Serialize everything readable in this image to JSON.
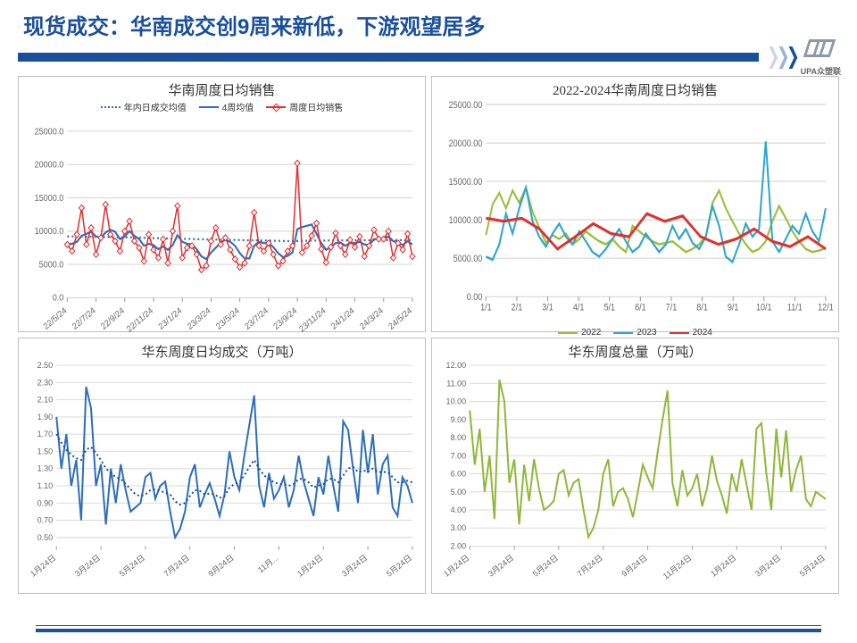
{
  "page_title": "现货成交：华南成交创9周来新低，下游观望居多",
  "logo_text": "UPA众塑联",
  "colors": {
    "brand": "#1a4f9c",
    "grid": "#d9d9d9",
    "axis": "#808080",
    "red": "#e03030",
    "blue": "#2e6fb8",
    "blue_dotted": "#3a6fb0",
    "green": "#8fb83a",
    "olive": "#9bbf3f",
    "teal": "#2ea7c9",
    "darknavy": "#1a4f9c"
  },
  "chart1": {
    "title": "华南周度日均销售",
    "type": "line",
    "legend": [
      {
        "label": "年内日成交均值",
        "color": "#3a6fb0",
        "style": "dotted"
      },
      {
        "label": "4周均值",
        "color": "#2e6fb8",
        "style": "solid"
      },
      {
        "label": "周度日均销售",
        "color": "#e03030",
        "style": "solid",
        "marker": "diamond"
      }
    ],
    "ylim": [
      0,
      25000
    ],
    "ytick_step": 5000,
    "x_labels": [
      "22/5/24",
      "22/7/24",
      "22/9/24",
      "22/11/24",
      "23/1/24",
      "23/3/24",
      "23/5/24",
      "23/7/24",
      "23/9/24",
      "23/11/24",
      "24/1/24",
      "24/3/24",
      "24/5/24"
    ],
    "series_weekly": [
      8000,
      7000,
      9500,
      13500,
      8000,
      10500,
      6500,
      9000,
      14000,
      9500,
      8500,
      7000,
      10000,
      11500,
      8500,
      7500,
      5500,
      9500,
      7200,
      6000,
      8800,
      5200,
      10000,
      13800,
      6000,
      7500,
      7800,
      6500,
      4200,
      4800,
      8500,
      10500,
      8000,
      9000,
      7200,
      5800,
      4600,
      5200,
      7800,
      12800,
      7800,
      7000,
      8200,
      6500,
      4800,
      5500,
      7000,
      7800,
      20200,
      6800,
      7800,
      9300,
      11200,
      7300,
      5300,
      7600,
      9700,
      7800,
      6500,
      8700,
      7600,
      9200,
      6200,
      7800,
      10200,
      8800,
      8800,
      10000,
      6000,
      8200,
      7200,
      9600,
      6200
    ],
    "series_4wk": [
      8000,
      8100,
      8400,
      9300,
      9600,
      9900,
      9200,
      9000,
      9800,
      10200,
      9900,
      8800,
      9200,
      10000,
      9300,
      8800,
      7800,
      8100,
      7900,
      7300,
      7700,
      7200,
      7900,
      9400,
      8400,
      8100,
      8000,
      7300,
      6200,
      5800,
      6800,
      7500,
      8300,
      8700,
      8400,
      7800,
      6700,
      5900,
      5900,
      7800,
      8400,
      8200,
      8200,
      7600,
      6700,
      6100,
      6300,
      6800,
      10300,
      10600,
      10800,
      11000,
      9600,
      8200,
      7200,
      7600,
      8200,
      8300,
      7800,
      8200,
      8200,
      8400,
      8000,
      7900,
      8800,
      8800,
      8900,
      9200,
      8500,
      8300,
      7900,
      8500,
      8000
    ],
    "series_annual": [
      9200,
      9200,
      9180,
      9180,
      9160,
      9150,
      9140,
      9120,
      9110,
      9100,
      9090,
      9070,
      9060,
      9050,
      9040,
      9020,
      9000,
      8980,
      8960,
      8940,
      8920,
      8900,
      8880,
      8870,
      8850,
      8840,
      8820,
      8800,
      8780,
      8760,
      8740,
      8730,
      8720,
      8710,
      8700,
      8680,
      8660,
      8640,
      8620,
      8620,
      8600,
      8590,
      8580,
      8560,
      8540,
      8520,
      8500,
      8500,
      8520,
      8540,
      8560,
      8580,
      8590,
      8590,
      8590,
      8600,
      8610,
      8610,
      8610,
      8620,
      8620,
      8630,
      8630,
      8630,
      8640,
      8650,
      8650,
      8650,
      8650,
      8650,
      8650,
      8650,
      8650
    ],
    "grid_color": "#d9d9d9",
    "axis_fontsize": 9
  },
  "chart2": {
    "title": "2022-2024华南周度日均销售",
    "type": "line",
    "legend": [
      {
        "label": "2022",
        "color": "#9bbf3f",
        "style": "solid"
      },
      {
        "label": "2023",
        "color": "#2ea7c9",
        "style": "solid"
      },
      {
        "label": "2024",
        "color": "#e03030",
        "style": "solid"
      }
    ],
    "ylim": [
      0,
      25000
    ],
    "ytick_step": 5000,
    "x_labels": [
      "1/1",
      "2/1",
      "3/1",
      "4/1",
      "5/1",
      "6/1",
      "7/1",
      "8/1",
      "9/1",
      "10/1",
      "11/1",
      "12/1"
    ],
    "series_2022": [
      8000,
      12000,
      13500,
      11500,
      13800,
      12200,
      14200,
      11000,
      9000,
      7000,
      8000,
      7500,
      8200,
      6800,
      7500,
      8500,
      7800,
      7200,
      6800,
      7500,
      6500,
      5800,
      9200,
      8500,
      7800,
      7200,
      6800,
      7000,
      7200,
      6500,
      5800,
      6200,
      6800,
      7800,
      12200,
      13800,
      11500,
      9800,
      8200,
      6800,
      5800,
      6200,
      7200,
      9800,
      11800,
      10200,
      8500,
      7200,
      6200,
      5800,
      6000,
      6300
    ],
    "series_2023": [
      5200,
      4800,
      6800,
      10800,
      8200,
      11500,
      14200,
      9800,
      7800,
      6500,
      8200,
      9500,
      7800,
      6800,
      8500,
      7200,
      5800,
      5200,
      6200,
      7500,
      8800,
      7200,
      5800,
      6500,
      8200,
      7000,
      5800,
      6800,
      9200,
      7500,
      8800,
      7000,
      6200,
      7800,
      11800,
      9200,
      5200,
      4500,
      6800,
      9500,
      7800,
      8800,
      20200,
      7200,
      5800,
      7500,
      9200,
      8200,
      10800,
      8500,
      7200,
      11500
    ],
    "series_2024": [
      10200,
      9800,
      10200,
      8800,
      6200,
      7800,
      9500,
      8200,
      7800,
      10800,
      9800,
      10500,
      7800,
      6800,
      7500,
      8800,
      7200,
      6500,
      7800,
      6200
    ],
    "grid_color": "#d9d9d9",
    "axis_fontsize": 9
  },
  "chart3": {
    "title": "华东周度日均成交（万吨）",
    "type": "line",
    "ylim": [
      0.4,
      2.5
    ],
    "yticks": [
      0.5,
      0.7,
      0.9,
      1.1,
      1.3,
      1.5,
      1.7,
      1.9,
      2.1,
      2.3,
      2.5
    ],
    "x_labels": [
      "1月24日",
      "3月24日",
      "5月24日",
      "7月24日",
      "9月24日",
      "11月...",
      "1月24日",
      "3月24日",
      "5月24日"
    ],
    "series_main": [
      1.9,
      1.3,
      1.7,
      1.1,
      1.4,
      0.7,
      2.25,
      2.0,
      1.1,
      1.35,
      0.65,
      1.3,
      0.9,
      1.35,
      1.05,
      0.8,
      0.85,
      0.9,
      1.2,
      1.25,
      0.95,
      1.1,
      1.15,
      0.8,
      0.5,
      0.6,
      0.8,
      1.2,
      1.35,
      0.85,
      1.0,
      1.13,
      0.95,
      0.75,
      1.0,
      1.5,
      1.2,
      1.05,
      1.45,
      1.8,
      2.15,
      1.1,
      0.85,
      1.25,
      0.95,
      1.05,
      1.2,
      0.85,
      1.05,
      1.45,
      1.15,
      0.95,
      0.75,
      1.2,
      1.0,
      1.45,
      1.1,
      0.8,
      1.85,
      1.75,
      1.3,
      0.9,
      1.75,
      1.25,
      1.7,
      1.0,
      1.35,
      1.45,
      0.85,
      0.75,
      1.2,
      1.1,
      0.9
    ],
    "series_dotted": [
      1.7,
      1.6,
      1.52,
      1.46,
      1.42,
      1.4,
      1.52,
      1.55,
      1.48,
      1.4,
      1.3,
      1.25,
      1.2,
      1.18,
      1.12,
      1.06,
      1.0,
      0.98,
      1.0,
      1.05,
      1.06,
      1.04,
      1.02,
      1.0,
      0.92,
      0.88,
      0.9,
      0.98,
      1.05,
      1.04,
      1.0,
      1.01,
      1.0,
      0.96,
      0.98,
      1.08,
      1.12,
      1.14,
      1.22,
      1.32,
      1.4,
      1.3,
      1.22,
      1.18,
      1.14,
      1.12,
      1.12,
      1.1,
      1.12,
      1.18,
      1.18,
      1.14,
      1.08,
      1.1,
      1.12,
      1.18,
      1.18,
      1.14,
      1.22,
      1.3,
      1.32,
      1.26,
      1.28,
      1.26,
      1.3,
      1.26,
      1.26,
      1.26,
      1.2,
      1.14,
      1.14,
      1.16,
      1.14
    ],
    "line_color": "#2e6fb8",
    "dotted_color": "#1a4f9c",
    "grid_color": "#d9d9d9",
    "axis_fontsize": 9
  },
  "chart4": {
    "title": "华东周度总量（万吨）",
    "type": "line",
    "ylim": [
      2,
      12
    ],
    "yticks": [
      2,
      3,
      4,
      5,
      6,
      7,
      8,
      9,
      10,
      11,
      12
    ],
    "x_labels": [
      "1月24日",
      "3月24日",
      "5月24日",
      "7月24日",
      "9月24日",
      "11月24日",
      "1月24日",
      "3月24日",
      "5月24日"
    ],
    "series": [
      9.5,
      6.5,
      8.5,
      5.0,
      7.0,
      3.5,
      11.2,
      10.0,
      5.5,
      6.8,
      3.2,
      6.5,
      4.5,
      6.8,
      5.2,
      4.0,
      4.2,
      4.5,
      6.0,
      6.2,
      4.8,
      5.5,
      5.7,
      4.0,
      2.5,
      3.0,
      4.0,
      6.0,
      6.8,
      4.2,
      5.0,
      5.2,
      4.6,
      3.6,
      5.0,
      6.5,
      5.8,
      5.2,
      7.2,
      9.0,
      10.6,
      5.5,
      4.2,
      6.2,
      4.8,
      5.2,
      6.0,
      4.2,
      5.2,
      7.0,
      5.6,
      4.8,
      3.8,
      6.0,
      5.0,
      6.8,
      5.4,
      4.0,
      8.5,
      8.8,
      6.0,
      4.0,
      8.5,
      5.8,
      8.4,
      5.0,
      6.2,
      7.0,
      4.6,
      4.2,
      5.0,
      4.8,
      4.6
    ],
    "line_color": "#8fb83a",
    "grid_color": "#d9d9d9",
    "axis_fontsize": 9
  }
}
